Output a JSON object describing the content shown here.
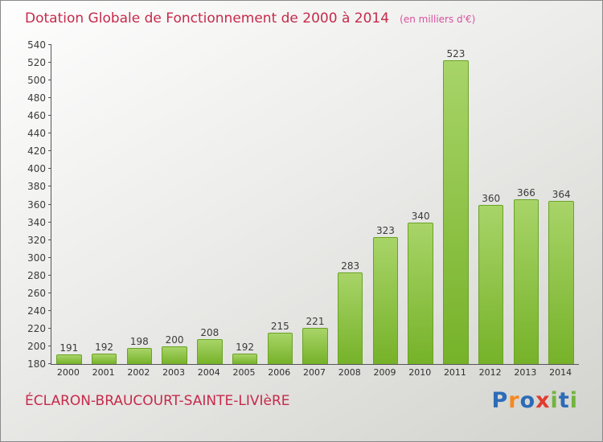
{
  "header": {
    "title": "Dotation Globale de Fonctionnement de 2000 à 2014",
    "subtitle": "(en milliers d'€)"
  },
  "footer": {
    "commune": "ÉCLARON-BRAUCOURT-SAINTE-LIVIèRE"
  },
  "logo": {
    "name": "Proxiti",
    "letters": [
      {
        "ch": "P",
        "color": "#2b6cb8"
      },
      {
        "ch": "r",
        "color": "#f6891f"
      },
      {
        "ch": "o",
        "color": "#2b6cb8"
      },
      {
        "ch": "x",
        "color": "#e23b2e"
      },
      {
        "ch": "i",
        "color": "#72b43c"
      },
      {
        "ch": "t",
        "color": "#2b6cb8"
      },
      {
        "ch": "i",
        "color": "#72b43c"
      }
    ]
  },
  "colors": {
    "title": "#c62a4a",
    "subtitle": "#d9509e",
    "bar_top": "#a8d468",
    "bar_bottom": "#76b229",
    "bar_border": "#6aa325"
  },
  "chart_data": {
    "type": "bar",
    "title": "Dotation Globale de Fonctionnement de 2000 à 2014",
    "subtitle": "(en milliers d'€)",
    "categories": [
      "2000",
      "2001",
      "2002",
      "2003",
      "2004",
      "2005",
      "2006",
      "2007",
      "2008",
      "2009",
      "2010",
      "2011",
      "2012",
      "2013",
      "2014"
    ],
    "values": [
      191,
      192,
      198,
      200,
      208,
      192,
      215,
      221,
      283,
      323,
      340,
      523,
      360,
      366,
      364
    ],
    "xlabel": "",
    "ylabel": "",
    "ylim": [
      180,
      540
    ],
    "ytick_step": 20,
    "grid": false,
    "legend": "none"
  }
}
